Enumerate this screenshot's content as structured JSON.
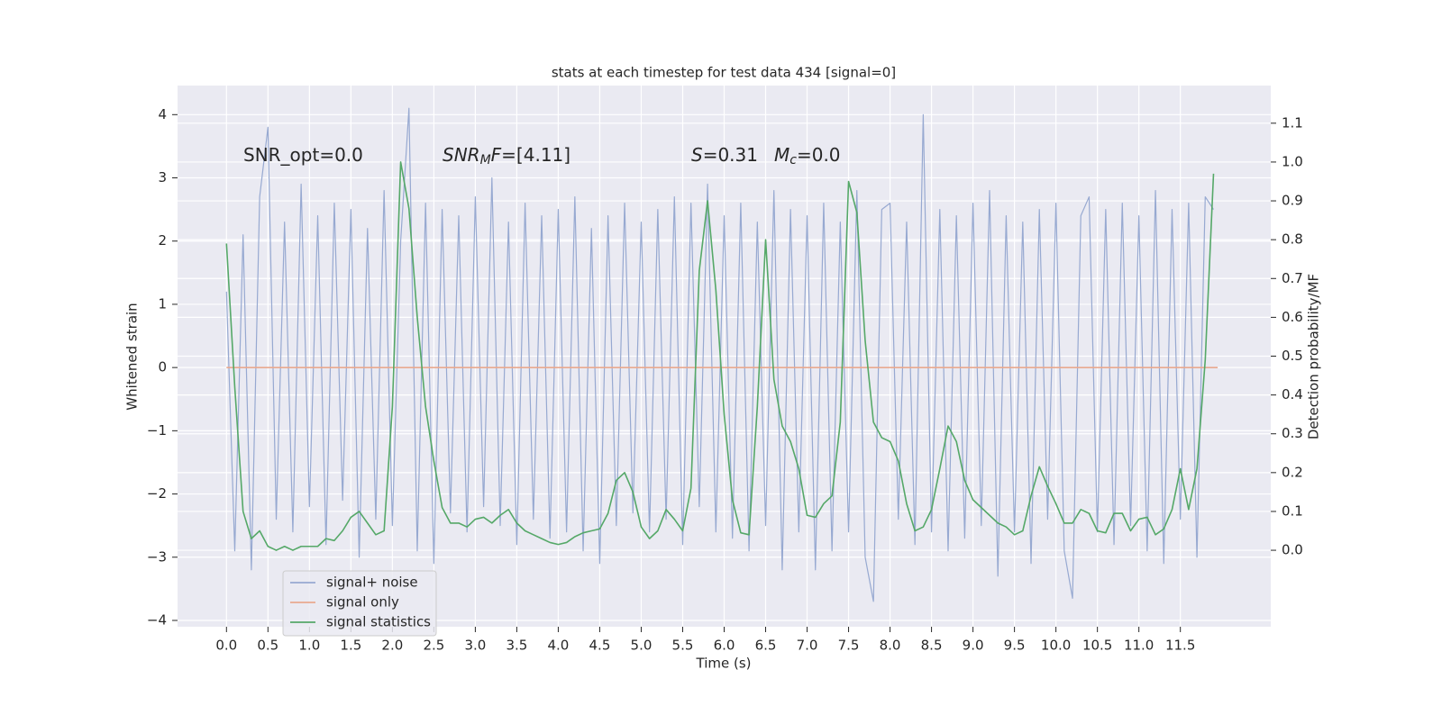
{
  "chart_data": {
    "type": "line",
    "title": "stats at each timestep for test data 434 [signal=0]",
    "xlabel": "Time (s)",
    "ylabel": "Whitened strain",
    "y2label": "Detection probability/MF",
    "annotations": [
      [
        {
          "text": "SNR_opt=0.0",
          "style": "normal"
        }
      ],
      [
        {
          "text": "SNR",
          "style": "italic"
        },
        {
          "text": "M",
          "style": "sub"
        },
        {
          "text": "F",
          "style": "italic"
        },
        {
          "text": "=[4.11]",
          "style": "normal"
        }
      ],
      [
        {
          "text": "S",
          "style": "italic"
        },
        {
          "text": "=0.31",
          "style": "normal"
        }
      ],
      [
        {
          "text": "M",
          "style": "italic"
        },
        {
          "text": "c",
          "style": "sub"
        },
        {
          "text": "=0.0",
          "style": "normal"
        }
      ]
    ],
    "xlim": [
      -0.59,
      12.59
    ],
    "ylim": [
      -4.1,
      4.46
    ],
    "y2lim": [
      -0.197,
      1.197
    ],
    "xticks": [
      {
        "value": 0,
        "label": "0.0"
      },
      0.5,
      {
        "value": 1,
        "label": "1.0"
      },
      1.5,
      {
        "value": 2,
        "label": "2.0"
      },
      2.5,
      {
        "value": 3,
        "label": "3.0"
      },
      3.5,
      {
        "value": 4,
        "label": "4.0"
      },
      4.5,
      {
        "value": 5,
        "label": "5.0"
      },
      5.5,
      {
        "value": 6,
        "label": "6.0"
      },
      6.5,
      {
        "value": 7,
        "label": "7.0"
      },
      7.5,
      {
        "value": 8,
        "label": "8.0"
      },
      8.5,
      {
        "value": 9,
        "label": "9.0"
      },
      9.5,
      {
        "value": 10,
        "label": "10.0"
      },
      10.5,
      {
        "value": 11,
        "label": "11.0"
      },
      11.5
    ],
    "yticks": [
      {
        "value": -4,
        "label": "−4"
      },
      {
        "value": -3,
        "label": "−3"
      },
      {
        "value": -2,
        "label": "−2"
      },
      {
        "value": -1,
        "label": "−1"
      },
      0,
      1,
      2,
      3,
      4
    ],
    "y2ticks": [
      {
        "value": 0,
        "label": "0.0"
      },
      0.1,
      0.2,
      0.3,
      0.4,
      0.5,
      0.6,
      0.7,
      0.8,
      0.9,
      {
        "value": 1,
        "label": "1.0"
      },
      1.1
    ],
    "grid": true,
    "legend": "lower left",
    "series": [
      {
        "name": "signal+ noise",
        "color": "#97a9d1",
        "x": [
          0,
          0.1,
          0.2,
          0.3,
          0.4,
          0.5,
          0.6,
          0.7,
          0.8,
          0.9,
          1,
          1.1,
          1.2,
          1.3,
          1.4,
          1.5,
          1.6,
          1.7,
          1.8,
          1.9,
          2,
          2.1,
          2.2,
          2.3,
          2.4,
          2.5,
          2.6,
          2.7,
          2.8,
          2.9,
          3,
          3.1,
          3.2,
          3.3,
          3.4,
          3.5,
          3.6,
          3.7,
          3.8,
          3.9,
          4,
          4.1,
          4.2,
          4.3,
          4.4,
          4.5,
          4.6,
          4.7,
          4.8,
          4.9,
          5,
          5.1,
          5.2,
          5.3,
          5.4,
          5.5,
          5.6,
          5.7,
          5.8,
          5.9,
          6,
          6.1,
          6.2,
          6.3,
          6.4,
          6.5,
          6.6,
          6.7,
          6.8,
          6.9,
          7,
          7.1,
          7.2,
          7.3,
          7.4,
          7.5,
          7.6,
          7.7,
          7.8,
          7.9,
          8,
          8.1,
          8.2,
          8.3,
          8.4,
          8.5,
          8.6,
          8.7,
          8.8,
          8.9,
          9,
          9.1,
          9.2,
          9.3,
          9.4,
          9.5,
          9.6,
          9.7,
          9.8,
          9.9,
          10,
          10.1,
          10.2,
          10.3,
          10.4,
          10.5,
          10.6,
          10.7,
          10.8,
          10.9,
          11,
          11.1,
          11.2,
          11.3,
          11.4,
          11.5,
          11.6,
          11.7,
          11.8,
          11.9
        ],
        "values": [
          1.2,
          -2.9,
          2.1,
          -3.2,
          2.7,
          3.8,
          -2.4,
          2.3,
          -2.6,
          2.9,
          -2.2,
          2.4,
          -2.8,
          2.6,
          -2.1,
          2.5,
          -3.0,
          2.2,
          -2.4,
          2.8,
          -2.5,
          2.0,
          4.1,
          -2.9,
          2.6,
          -3.1,
          2.5,
          -2.3,
          2.4,
          -2.6,
          2.7,
          -2.2,
          3.0,
          -2.5,
          2.3,
          -2.8,
          2.6,
          -2.4,
          2.4,
          -2.7,
          2.5,
          -2.6,
          2.7,
          -2.9,
          2.2,
          -3.1,
          2.4,
          -2.5,
          2.6,
          -2.3,
          2.3,
          -2.6,
          2.5,
          -2.4,
          2.7,
          -2.8,
          2.6,
          -2.2,
          2.9,
          -2.6,
          2.4,
          -2.7,
          2.6,
          -2.9,
          2.3,
          -2.5,
          2.8,
          -3.2,
          2.5,
          -2.6,
          2.4,
          -3.2,
          2.6,
          -2.9,
          2.3,
          -2.6,
          2.8,
          -3.0,
          -3.7,
          2.5,
          2.6,
          -2.4,
          2.3,
          -2.8,
          4.0,
          -2.6,
          2.5,
          -2.9,
          2.4,
          -2.7,
          2.6,
          -2.5,
          2.8,
          -3.3,
          2.4,
          -2.6,
          2.3,
          -3.1,
          2.5,
          -2.4,
          2.6,
          -2.9,
          -3.65,
          2.4,
          2.7,
          -2.6,
          2.5,
          -2.8,
          2.6,
          -2.5,
          2.4,
          -2.9,
          2.8,
          -3.1,
          2.5,
          -2.4,
          2.6,
          -3.0,
          2.7,
          2.5
        ]
      },
      {
        "name": "signal only",
        "color": "#e9a98f",
        "x": [
          0,
          11.95
        ],
        "values": [
          0,
          0
        ]
      },
      {
        "name": "signal statistics",
        "color": "#55a868",
        "axis": "y2",
        "x": [
          0,
          0.1,
          0.2,
          0.3,
          0.4,
          0.5,
          0.6,
          0.7,
          0.8,
          0.9,
          1,
          1.1,
          1.2,
          1.3,
          1.4,
          1.5,
          1.6,
          1.7,
          1.8,
          1.9,
          2,
          2.1,
          2.2,
          2.3,
          2.4,
          2.5,
          2.6,
          2.7,
          2.8,
          2.9,
          3,
          3.1,
          3.2,
          3.3,
          3.4,
          3.5,
          3.6,
          3.7,
          3.8,
          3.9,
          4,
          4.1,
          4.2,
          4.3,
          4.4,
          4.5,
          4.6,
          4.7,
          4.8,
          4.9,
          5,
          5.1,
          5.2,
          5.3,
          5.4,
          5.5,
          5.6,
          5.7,
          5.8,
          5.9,
          6,
          6.1,
          6.2,
          6.3,
          6.4,
          6.5,
          6.6,
          6.7,
          6.8,
          6.9,
          7,
          7.1,
          7.2,
          7.3,
          7.4,
          7.5,
          7.6,
          7.7,
          7.8,
          7.9,
          8,
          8.1,
          8.2,
          8.3,
          8.4,
          8.5,
          8.6,
          8.7,
          8.8,
          8.9,
          9,
          9.1,
          9.2,
          9.3,
          9.4,
          9.5,
          9.6,
          9.7,
          9.8,
          9.9,
          10,
          10.1,
          10.2,
          10.3,
          10.4,
          10.5,
          10.6,
          10.7,
          10.8,
          10.9,
          11,
          11.1,
          11.2,
          11.3,
          11.4,
          11.5,
          11.6,
          11.7,
          11.8,
          11.9
        ],
        "values": [
          0.79,
          0.42,
          0.1,
          0.03,
          0.05,
          0.01,
          0,
          0.01,
          0,
          0.01,
          0.01,
          0.01,
          0.03,
          0.025,
          0.05,
          0.085,
          0.1,
          0.07,
          0.04,
          0.05,
          0.37,
          1.0,
          0.88,
          0.6,
          0.37,
          0.23,
          0.11,
          0.07,
          0.07,
          0.06,
          0.08,
          0.085,
          0.07,
          0.09,
          0.105,
          0.07,
          0.05,
          0.04,
          0.03,
          0.02,
          0.015,
          0.02,
          0.035,
          0.045,
          0.05,
          0.055,
          0.095,
          0.18,
          0.2,
          0.15,
          0.06,
          0.03,
          0.05,
          0.105,
          0.08,
          0.05,
          0.16,
          0.72,
          0.9,
          0.67,
          0.35,
          0.13,
          0.045,
          0.04,
          0.37,
          0.8,
          0.44,
          0.32,
          0.28,
          0.21,
          0.09,
          0.085,
          0.12,
          0.14,
          0.33,
          0.95,
          0.87,
          0.54,
          0.33,
          0.29,
          0.28,
          0.23,
          0.12,
          0.05,
          0.06,
          0.105,
          0.21,
          0.32,
          0.28,
          0.18,
          0.13,
          0.11,
          0.09,
          0.07,
          0.06,
          0.04,
          0.05,
          0.14,
          0.215,
          0.165,
          0.12,
          0.07,
          0.07,
          0.105,
          0.095,
          0.05,
          0.045,
          0.095,
          0.095,
          0.05,
          0.08,
          0.085,
          0.04,
          0.055,
          0.105,
          0.21,
          0.105,
          0.21,
          0.49,
          0.97
        ]
      }
    ]
  }
}
